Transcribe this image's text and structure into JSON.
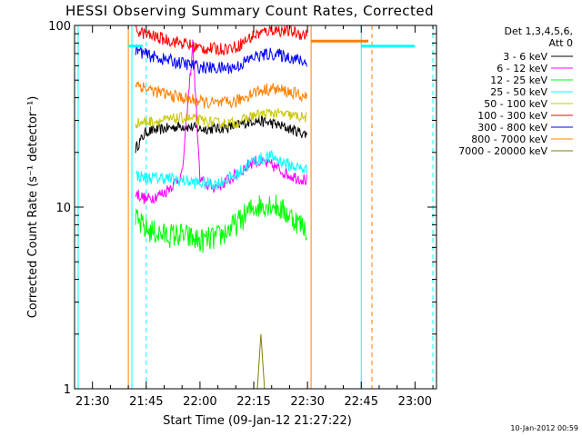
{
  "chart_data": {
    "type": "line",
    "title": "HESSI Observing Summary Count Rates, Corrected",
    "xlabel": "Start Time (09-Jan-12 21:27:22)",
    "ylabel": "Corrected Count Rate (s⁻¹ detector⁻¹)",
    "yscale": "log",
    "xlim": [
      "21:25",
      "23:06"
    ],
    "ylim": [
      1,
      100
    ],
    "x_ticks": [
      "21:30",
      "21:45",
      "22:00",
      "22:15",
      "22:30",
      "22:45",
      "23:00"
    ],
    "y_ticks": [
      "1",
      "10",
      "100"
    ],
    "legend_position": "top-right",
    "legend_header": [
      "Det 1,3,4,5,6,",
      "Att 0"
    ],
    "series": [
      {
        "name": "3 - 6 keV",
        "color": "#000000",
        "x": [
          "21:42",
          "21:45",
          "21:50",
          "21:55",
          "22:00",
          "22:05",
          "22:10",
          "22:15",
          "22:20",
          "22:25",
          "22:30"
        ],
        "values": [
          21,
          26,
          27,
          28,
          27,
          27,
          28,
          30,
          29,
          27,
          25
        ]
      },
      {
        "name": "6 - 12 keV",
        "color": "#ff00ff",
        "x": [
          "21:42",
          "21:45",
          "21:50",
          "21:55",
          "21:58",
          "22:00",
          "22:03",
          "22:05",
          "22:10",
          "22:15",
          "22:20",
          "22:25",
          "22:30"
        ],
        "values": [
          12,
          11,
          12,
          15,
          80,
          14,
          13,
          13,
          15,
          18,
          17,
          15,
          14
        ]
      },
      {
        "name": "12 - 25 keV",
        "color": "#00ff00",
        "x": [
          "21:42",
          "21:45",
          "21:50",
          "21:55",
          "22:00",
          "22:05",
          "22:10",
          "22:15",
          "22:20",
          "22:25",
          "22:30"
        ],
        "values": [
          8.5,
          7.5,
          7,
          7,
          6.5,
          6.8,
          8,
          10,
          10.5,
          9,
          7.5
        ]
      },
      {
        "name": "25 - 50 keV",
        "color": "#00ffff",
        "x": [
          "21:42",
          "21:45",
          "21:50",
          "21:55",
          "22:00",
          "22:05",
          "22:10",
          "22:15",
          "22:20",
          "22:25",
          "22:30"
        ],
        "values": [
          15,
          14.5,
          14.5,
          14,
          13.5,
          13.5,
          15,
          18,
          19,
          17,
          16
        ]
      },
      {
        "name": "50 - 100 keV",
        "color": "#c8c800",
        "x": [
          "21:42",
          "21:45",
          "21:50",
          "21:55",
          "22:00",
          "22:05",
          "22:10",
          "22:15",
          "22:20",
          "22:25",
          "22:30"
        ],
        "values": [
          29,
          29.5,
          30,
          31,
          30,
          29,
          29,
          32,
          33,
          32,
          31
        ]
      },
      {
        "name": "100 - 300 keV",
        "color": "#ff0000",
        "x": [
          "21:42",
          "21:45",
          "21:50",
          "21:55",
          "22:00",
          "22:05",
          "22:10",
          "22:15",
          "22:20",
          "22:25",
          "22:30"
        ],
        "values": [
          95,
          89,
          84,
          80,
          75,
          74,
          76,
          88,
          95,
          93,
          88
        ]
      },
      {
        "name": "300 - 800 keV",
        "color": "#0000ff",
        "x": [
          "21:42",
          "21:45",
          "21:50",
          "21:55",
          "22:00",
          "22:05",
          "22:10",
          "22:15",
          "22:20",
          "22:25",
          "22:30"
        ],
        "values": [
          74,
          69,
          65,
          62,
          59,
          58,
          59,
          67,
          70,
          67,
          62
        ]
      },
      {
        "name": "800 - 7000 keV",
        "color": "#ff8000",
        "x": [
          "21:42",
          "21:45",
          "21:50",
          "21:55",
          "22:00",
          "22:05",
          "22:10",
          "22:15",
          "22:20",
          "22:25",
          "22:30"
        ],
        "values": [
          48,
          45,
          42,
          40,
          38,
          37,
          38,
          43,
          45,
          43,
          40
        ]
      },
      {
        "name": "7000 - 20000 keV",
        "color": "#808000",
        "x": [
          "22:16",
          "22:17",
          "22:18"
        ],
        "values": [
          1,
          2,
          1
        ]
      }
    ],
    "attenuator_markers": [
      {
        "color": "#00ffff",
        "x": [
          "21:40",
          "21:44",
          "22:45",
          "23:00"
        ],
        "values": [
          77,
          77,
          77,
          77
        ]
      },
      {
        "color": "#ff8000",
        "x": [
          "22:31",
          "22:47"
        ],
        "values": [
          82,
          82
        ]
      }
    ],
    "timestamp": "10-Jan-2012 00:59"
  }
}
